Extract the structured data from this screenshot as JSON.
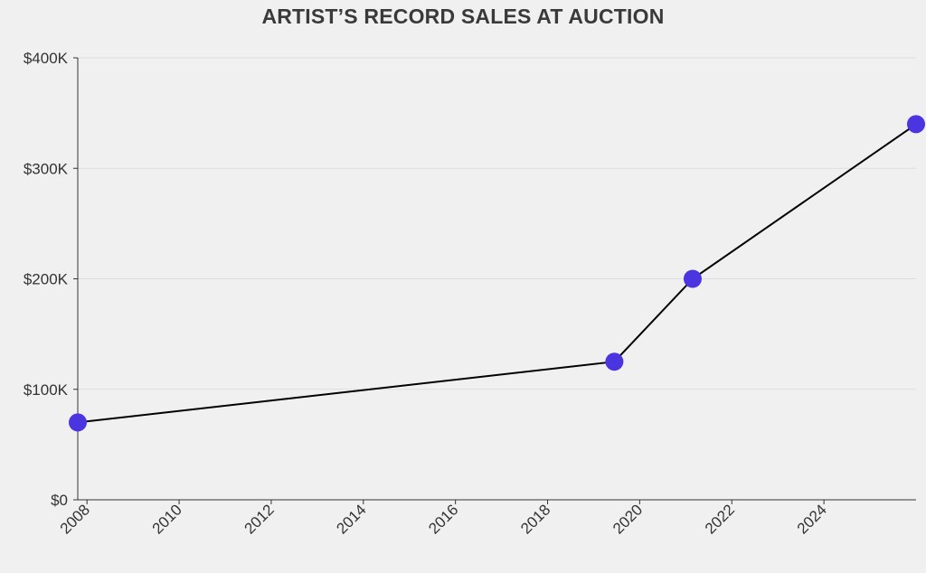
{
  "chart_data": {
    "type": "line",
    "title": "ARTIST’S RECORD SALES AT AUCTION",
    "xlabel": "",
    "ylabel": "",
    "x_ticks": [
      "2008",
      "2010",
      "2012",
      "2014",
      "2016",
      "2018",
      "2020",
      "2022",
      "2024"
    ],
    "y_ticks": [
      "$0",
      "$100K",
      "$200K",
      "$300K",
      "$400K"
    ],
    "xlim": [
      2007.8,
      2026.0
    ],
    "ylim": [
      0,
      400000
    ],
    "grid": "horizontal",
    "legend": "none",
    "series": [
      {
        "x": [
          2007.8,
          2019.45,
          2021.15,
          2026.0
        ],
        "y": [
          70000,
          125000,
          200000,
          340000
        ]
      }
    ]
  },
  "colors": {
    "background": "#f0f0f0",
    "line": "#000000",
    "marker": "#4a35e0",
    "grid": "#dddddd",
    "axis": "#333333",
    "text": "#333333"
  }
}
